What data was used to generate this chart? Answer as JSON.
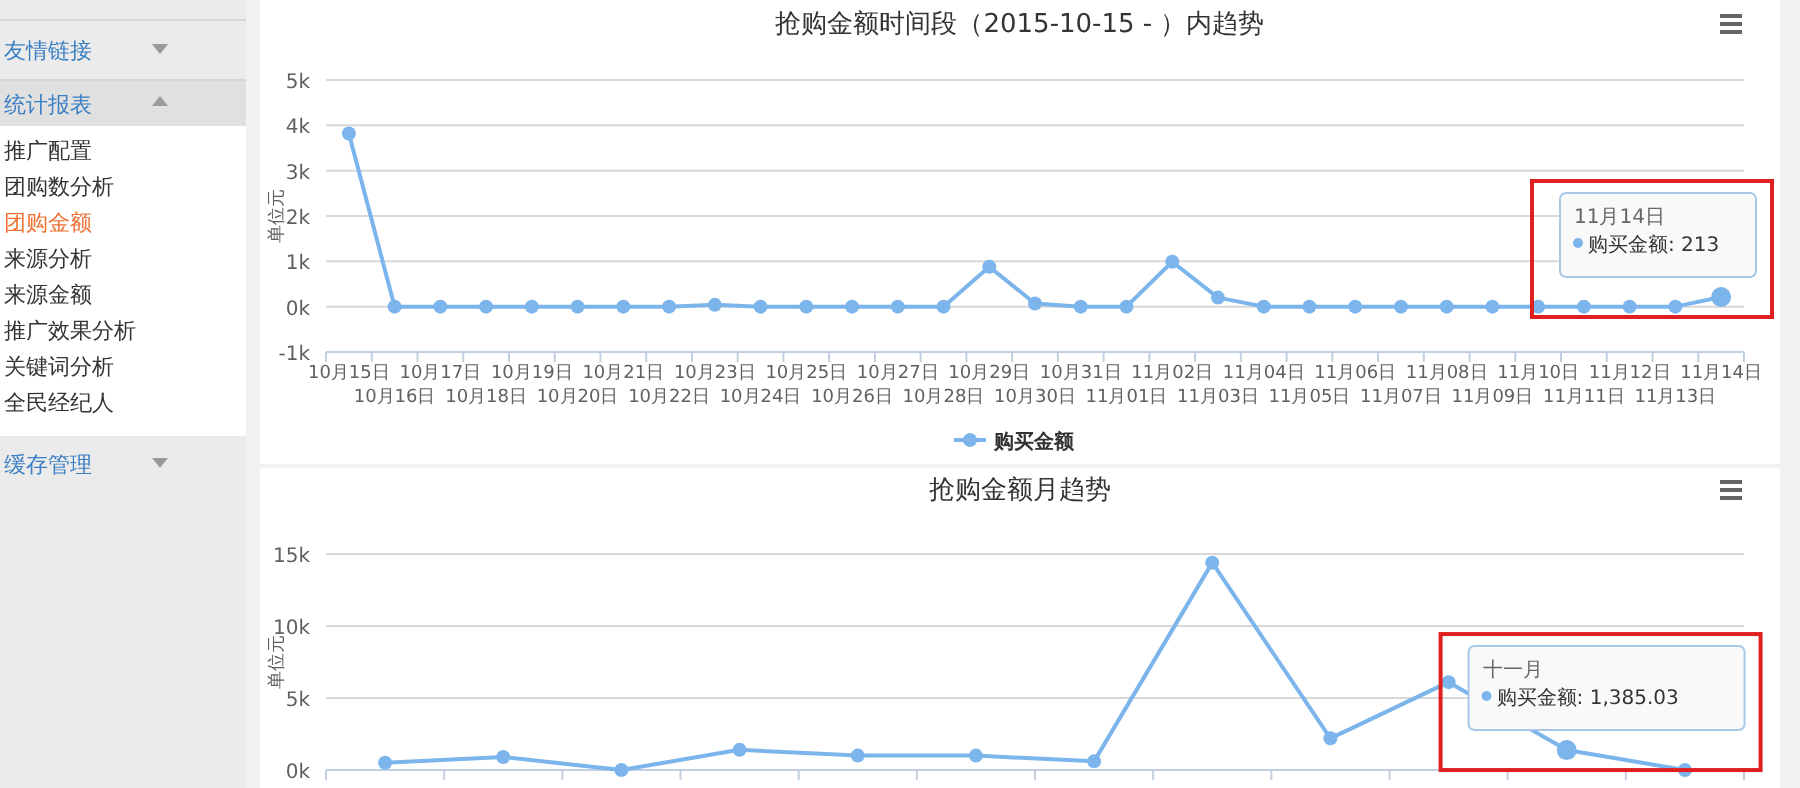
{
  "chart_data": [
    {
      "type": "other",
      "annotations": [
        "友情链接",
        "统计报表",
        "推广配置",
        "团购数分析",
        "团购金额",
        "来源分析",
        "来源金额",
        "推广效果分析",
        "关键词分析",
        "全民经纪人",
        "缓存管理"
      ]
    },
    {
      "type": "line",
      "title": "抢购金额时间段（2015-10-15 - ）内趋势",
      "ylabel": "单位元",
      "categories": [
        "10月15日",
        "10月16日",
        "10月17日",
        "10月18日",
        "10月19日",
        "10月20日",
        "10月21日",
        "10月22日",
        "10月23日",
        "10月24日",
        "10月25日",
        "10月26日",
        "10月27日",
        "10月28日",
        "10月29日",
        "10月30日",
        "10月31日",
        "11月01日",
        "11月02日",
        "11月03日",
        "11月04日",
        "11月05日",
        "11月06日",
        "11月07日",
        "11月08日",
        "11月09日",
        "11月10日",
        "11月11日",
        "11月12日",
        "11月13日",
        "11月14日"
      ],
      "series": [
        {
          "name": "购买金额",
          "color": "#7cb5ec",
          "values": [
            3820,
            0,
            0,
            0,
            0,
            0,
            0,
            0,
            40,
            0,
            0,
            0,
            0,
            0,
            880,
            70,
            0,
            0,
            990,
            200,
            0,
            0,
            0,
            0,
            0,
            0,
            0,
            0,
            0,
            0,
            213
          ]
        }
      ],
      "ylim": [
        -1000,
        5000
      ],
      "yticks": [
        {
          "value": -1000,
          "label": "-1k"
        },
        {
          "value": 0,
          "label": "0k"
        },
        {
          "value": 1000,
          "label": "1k"
        },
        {
          "value": 2000,
          "label": "2k"
        },
        {
          "value": 3000,
          "label": "3k"
        },
        {
          "value": 4000,
          "label": "4k"
        },
        {
          "value": 5000,
          "label": "5k"
        }
      ],
      "grid": "y",
      "legend": "bottom",
      "marker": "circle",
      "line_style": "solid",
      "annotations": [
        "11月14日",
        "购买金额: 213"
      ]
    },
    {
      "type": "line",
      "title": "抢购金额月趋势",
      "ylabel": "单位元",
      "categories": [
        null,
        null,
        null,
        null,
        null,
        null,
        null,
        null,
        null,
        null,
        null,
        null
      ],
      "series": [
        {
          "color": "#7cb5ec",
          "values": [
            500,
            900,
            0,
            1400,
            1000,
            1000,
            600,
            14400,
            2200,
            6100,
            1385.03,
            0
          ]
        }
      ],
      "ylim": [
        0,
        15000
      ],
      "yticks": [
        {
          "value": 0,
          "label": "0k"
        },
        {
          "value": 5000,
          "label": "5k"
        },
        {
          "value": 10000,
          "label": "10k"
        },
        {
          "value": 15000,
          "label": "15k"
        }
      ],
      "grid": "y",
      "marker": "circle",
      "line_style": "solid",
      "annotations": [
        "十一月",
        "购买金额: 1,385.03"
      ]
    }
  ]
}
